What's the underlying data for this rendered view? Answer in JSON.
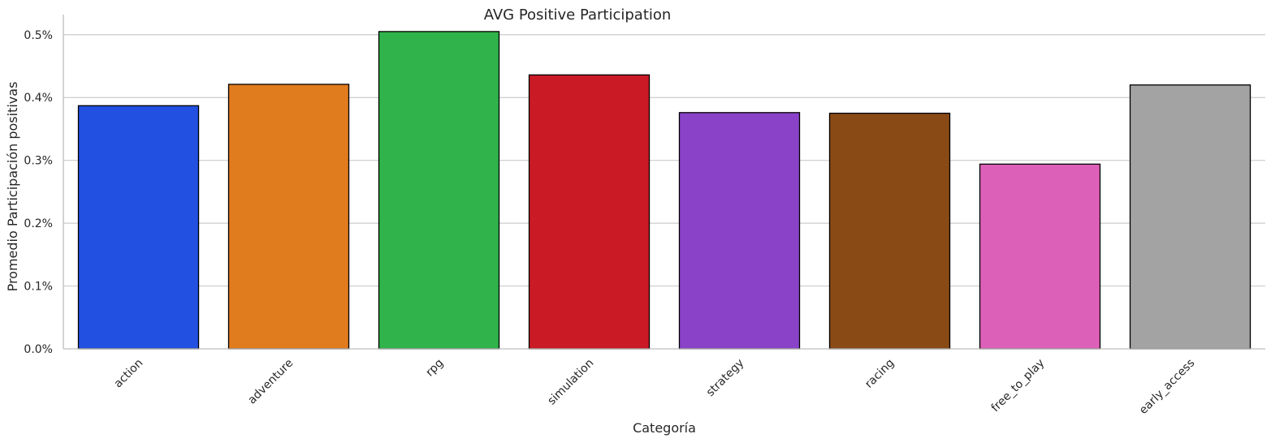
{
  "chart_data": {
    "type": "bar",
    "title": "AVG Positive Participation",
    "xlabel": "Categoría",
    "ylabel": "Promedio Participación positivas",
    "categories": [
      "action",
      "adventure",
      "rpg",
      "simulation",
      "strategy",
      "racing",
      "free_to_play",
      "early_access"
    ],
    "values": [
      0.387,
      0.421,
      0.505,
      0.436,
      0.376,
      0.375,
      0.294,
      0.42
    ],
    "colors": [
      "#2250e0",
      "#e07b1e",
      "#30b34a",
      "#c91a25",
      "#8a42c9",
      "#8a4a16",
      "#dc60b8",
      "#a3a3a3"
    ],
    "ylim": [
      0,
      0.532
    ],
    "yticks": [
      0.0,
      0.1,
      0.2,
      0.3,
      0.4,
      0.5
    ],
    "ytick_labels": [
      "0.0%",
      "0.1%",
      "0.2%",
      "0.3%",
      "0.4%",
      "0.5%"
    ],
    "grid": "horizontal",
    "bar_edge_color": "#000000"
  }
}
